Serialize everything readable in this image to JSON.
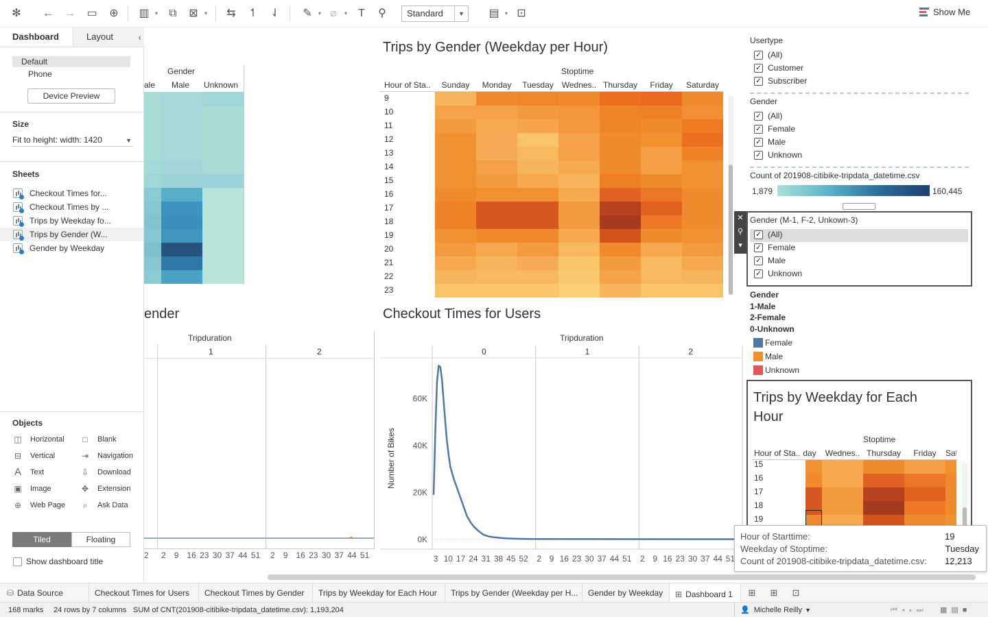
{
  "toolbar": {
    "fit_value": "Standard",
    "show_me": "Show Me"
  },
  "left_panel": {
    "tab_dashboard": "Dashboard",
    "tab_layout": "Layout",
    "device_default": "Default",
    "device_phone": "Phone",
    "device_preview": "Device Preview",
    "size_heading": "Size",
    "size_value": "Fit to height: width: 1420",
    "sheets_heading": "Sheets",
    "sheets": [
      {
        "label": "Checkout Times for..."
      },
      {
        "label": "Checkout Times by ..."
      },
      {
        "label": "Trips by Weekday fo..."
      },
      {
        "label": "Trips by Gender (W..."
      },
      {
        "label": "Gender by Weekday"
      }
    ],
    "objects_heading": "Objects",
    "objects": [
      {
        "label": "Horizontal",
        "icon": "horizontal-icon"
      },
      {
        "label": "Blank",
        "icon": "blank-icon"
      },
      {
        "label": "Vertical",
        "icon": "vertical-icon"
      },
      {
        "label": "Navigation",
        "icon": "navigation-icon"
      },
      {
        "label": "Text",
        "icon": "text-icon"
      },
      {
        "label": "Download",
        "icon": "download-icon"
      },
      {
        "label": "Image",
        "icon": "image-icon"
      },
      {
        "label": "Extension",
        "icon": "extension-icon"
      },
      {
        "label": "Web Page",
        "icon": "web-page-icon"
      },
      {
        "label": "Ask Data",
        "icon": "ask-data-icon"
      }
    ],
    "tiled": "Tiled",
    "floating": "Floating",
    "show_title": "Show dashboard title"
  },
  "gender_weekday_sheet": {
    "header_group": "Gender",
    "columns": [
      "ale",
      "Male",
      "Unknown"
    ]
  },
  "trips_gender_sheet": {
    "title": "Trips by Gender (Weekday per Hour)",
    "header_group": "Stoptime",
    "row_header": "Hour of Sta..",
    "columns": [
      "Sunday",
      "Monday",
      "Tuesday",
      "Wednes..",
      "Thursday",
      "Friday",
      "Saturday"
    ],
    "rows": [
      "9",
      "10",
      "11",
      "12",
      "13",
      "14",
      "15",
      "16",
      "17",
      "18",
      "19",
      "20",
      "21",
      "22",
      "23"
    ]
  },
  "checkout_gender_sheet": {
    "title": "ender",
    "header_group": "Tripduration",
    "panes": [
      "1",
      "2"
    ],
    "ticks": [
      "2",
      "9",
      "16",
      "23",
      "30",
      "37",
      "44",
      "51"
    ],
    "first_tick": "2"
  },
  "chart_data": [
    {
      "type": "line",
      "title": "Checkout Times for Users",
      "xlabel": "Tripduration",
      "ylabel": "Number of Bikes",
      "y_ticks": [
        "0K",
        "20K",
        "40K",
        "60K"
      ],
      "ylim": [
        0,
        75000
      ],
      "panes": [
        "0",
        "1",
        "2"
      ],
      "x_ticks": [
        [
          "3",
          "10",
          "17",
          "24",
          "31",
          "38",
          "45",
          "52"
        ],
        [
          "2",
          "9",
          "16",
          "23",
          "30",
          "37",
          "44",
          "51"
        ],
        [
          "2",
          "9",
          "16",
          "23",
          "30",
          "37",
          "44",
          "51"
        ]
      ],
      "series": [
        {
          "x": [
            0,
            1,
            2,
            3,
            4,
            5,
            6,
            7,
            8,
            9,
            10,
            12,
            14,
            16,
            18,
            20,
            22,
            24,
            27,
            30,
            33,
            36,
            40,
            44,
            48,
            52,
            56,
            60
          ],
          "values": [
            19000,
            45000,
            67000,
            74000,
            73500,
            68000,
            59000,
            50000,
            42000,
            36000,
            31000,
            26000,
            22000,
            18000,
            14000,
            10000,
            7500,
            5600,
            3600,
            2000,
            1300,
            1000,
            700,
            500,
            400,
            300,
            250,
            200
          ]
        }
      ]
    }
  ],
  "filters": {
    "usertype_title": "Usertype",
    "usertype_items": [
      "(All)",
      "Customer",
      "Subscriber"
    ],
    "gender_title": "Gender",
    "gender_items": [
      "(All)",
      "Female",
      "Male",
      "Unknown"
    ],
    "count_title": "Count of 201908-citibike-tripdata_datetime.csv",
    "count_min": "1,879",
    "count_max": "160,445",
    "gender2_title": "Gender (M-1, F-2, Unkown-3)",
    "gender2_items": [
      "(All)",
      "Female",
      "Male",
      "Unknown"
    ],
    "legend_title_lines": [
      "Gender",
      "1-Male",
      "2-Female",
      "0-Unknown"
    ],
    "legend_items": [
      {
        "label": "Female",
        "color": "#4e79a7"
      },
      {
        "label": "Male",
        "color": "#f28e2b"
      },
      {
        "label": "Unknown",
        "color": "#e15759"
      }
    ]
  },
  "trips_weekday_sheet": {
    "title_line1": "Trips by Weekday for Each",
    "title_line2": "Hour",
    "header_group": "Stoptime",
    "row_header": "Hour of Sta..",
    "columns": [
      "day",
      "Wednes..",
      "Thursday",
      "Friday",
      "Sat"
    ],
    "rows": [
      "15",
      "16",
      "17",
      "18",
      "19"
    ]
  },
  "tooltip": {
    "label1": "Hour of Starttime:",
    "value1": "19",
    "label2": "Weekday of Stoptime:",
    "value2": "Tuesday",
    "label3": "Count of 201908-citibike-tripdata_datetime.csv:",
    "value3": "12,213"
  },
  "tabs": [
    {
      "label": "Data Source"
    },
    {
      "label": "Checkout Times for Users"
    },
    {
      "label": "Checkout Times by Gender"
    },
    {
      "label": "Trips by Weekday for Each Hour"
    },
    {
      "label": "Trips by Gender (Weekday per H..."
    },
    {
      "label": "Gender by Weekday"
    },
    {
      "label": "Dashboard 1"
    }
  ],
  "status": {
    "marks": "168 marks",
    "rows_cols": "24 rows by 7 columns",
    "sum": "SUM of CNT(201908-citibike-tripdata_datetime.csv): 1,193,204",
    "user": "Michelle Reilly"
  }
}
